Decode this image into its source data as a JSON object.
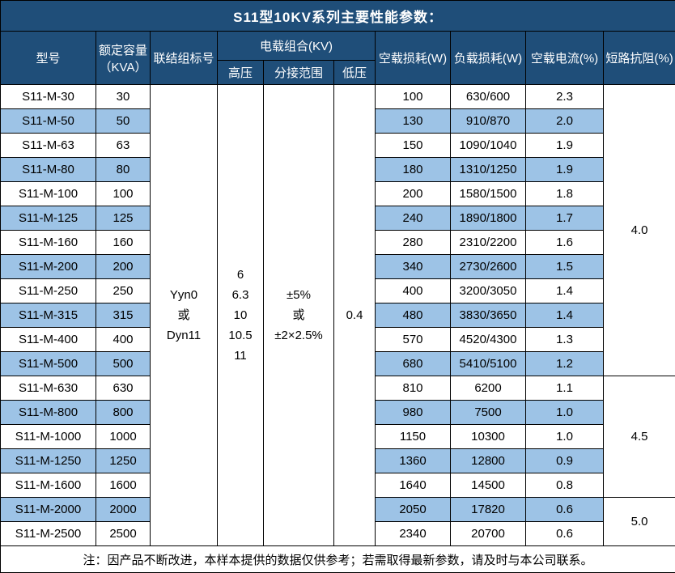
{
  "title": "S11型10KV系列主要性能参数：",
  "header": {
    "model": "型号",
    "capacity_line1": "额定容量",
    "capacity_line2": "（KVA）",
    "connection": "联结组标号",
    "voltage_group": "电载组合(KV)",
    "hv": "高压",
    "tap_range": "分接范围",
    "lv": "低压",
    "no_load_loss": "空载损耗(W)",
    "load_loss": "负载损耗(W)",
    "no_load_current": "空载电流(%)",
    "impedance": "短路抗阻(%)"
  },
  "merged": {
    "connection_lines": [
      "Yyn0",
      "或",
      "Dyn11"
    ],
    "hv_lines": [
      "6",
      "6.3",
      "10",
      "10.5",
      "11"
    ],
    "tap_lines": [
      "±5%",
      "或",
      "±2×2.5%"
    ],
    "lv": "0.4"
  },
  "rows": [
    {
      "model": "S11-M-30",
      "capacity": "30",
      "no_load_loss": "100",
      "load_loss": "630/600",
      "no_load_current": "2.3"
    },
    {
      "model": "S11-M-50",
      "capacity": "50",
      "no_load_loss": "130",
      "load_loss": "910/870",
      "no_load_current": "2.0"
    },
    {
      "model": "S11-M-63",
      "capacity": "63",
      "no_load_loss": "150",
      "load_loss": "1090/1040",
      "no_load_current": "1.9"
    },
    {
      "model": "S11-M-80",
      "capacity": "80",
      "no_load_loss": "180",
      "load_loss": "1310/1250",
      "no_load_current": "1.9"
    },
    {
      "model": "S11-M-100",
      "capacity": "100",
      "no_load_loss": "200",
      "load_loss": "1580/1500",
      "no_load_current": "1.8"
    },
    {
      "model": "S11-M-125",
      "capacity": "125",
      "no_load_loss": "240",
      "load_loss": "1890/1800",
      "no_load_current": "1.7"
    },
    {
      "model": "S11-M-160",
      "capacity": "160",
      "no_load_loss": "280",
      "load_loss": "2310/2200",
      "no_load_current": "1.6"
    },
    {
      "model": "S11-M-200",
      "capacity": "200",
      "no_load_loss": "340",
      "load_loss": "2730/2600",
      "no_load_current": "1.5"
    },
    {
      "model": "S11-M-250",
      "capacity": "250",
      "no_load_loss": "400",
      "load_loss": "3200/3050",
      "no_load_current": "1.4"
    },
    {
      "model": "S11-M-315",
      "capacity": "315",
      "no_load_loss": "480",
      "load_loss": "3830/3650",
      "no_load_current": "1.4"
    },
    {
      "model": "S11-M-400",
      "capacity": "400",
      "no_load_loss": "570",
      "load_loss": "4520/4300",
      "no_load_current": "1.3"
    },
    {
      "model": "S11-M-500",
      "capacity": "500",
      "no_load_loss": "680",
      "load_loss": "5410/5100",
      "no_load_current": "1.2"
    },
    {
      "model": "S11-M-630",
      "capacity": "630",
      "no_load_loss": "810",
      "load_loss": "6200",
      "no_load_current": "1.1"
    },
    {
      "model": "S11-M-800",
      "capacity": "800",
      "no_load_loss": "980",
      "load_loss": "7500",
      "no_load_current": "1.0"
    },
    {
      "model": "S11-M-1000",
      "capacity": "1000",
      "no_load_loss": "1150",
      "load_loss": "10300",
      "no_load_current": "1.0"
    },
    {
      "model": "S11-M-1250",
      "capacity": "1250",
      "no_load_loss": "1360",
      "load_loss": "12800",
      "no_load_current": "0.9"
    },
    {
      "model": "S11-M-1600",
      "capacity": "1600",
      "no_load_loss": "1640",
      "load_loss": "14500",
      "no_load_current": "0.8"
    },
    {
      "model": "S11-M-2000",
      "capacity": "2000",
      "no_load_loss": "2050",
      "load_loss": "17820",
      "no_load_current": "0.6"
    },
    {
      "model": "S11-M-2500",
      "capacity": "2500",
      "no_load_loss": "2340",
      "load_loss": "20700",
      "no_load_current": "0.6"
    }
  ],
  "impedance_groups": [
    {
      "value": "4.0",
      "row_span": 12
    },
    {
      "value": "4.5",
      "row_span": 5
    },
    {
      "value": "5.0",
      "row_span": 2
    }
  ],
  "note": "注：因产品不断改进，本样本提供的数据仅供参考；若需取得最新参数，请及时与本公司联系。",
  "colors": {
    "header_bg": "#1F4E79",
    "stripe_bg": "#9DC3E6",
    "border": "#000000",
    "header_text": "#FFFFFF",
    "body_text": "#000000"
  }
}
